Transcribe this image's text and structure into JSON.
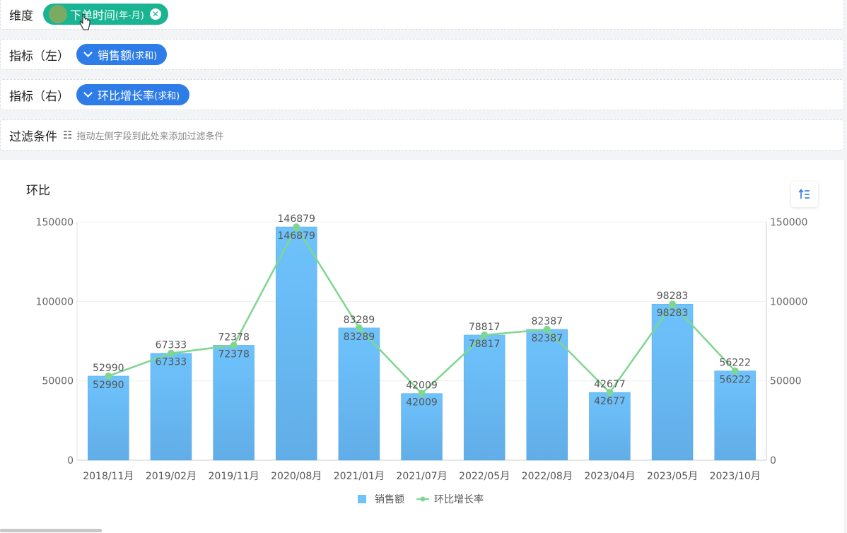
{
  "dimension": {
    "label": "维度",
    "field": "下单时间",
    "suffix": "(年-月)"
  },
  "metric_left": {
    "label": "指标（左）",
    "field": "销售额",
    "suffix": "(求和)"
  },
  "metric_right": {
    "label": "指标（右）",
    "field": "环比增长率",
    "suffix": "(求和)"
  },
  "filter": {
    "label": "过滤条件",
    "hint": "拖动左侧字段到此处来添加过滤条件"
  },
  "colors": {
    "bar_top": "#6ec3fc",
    "bar_bottom": "#61ade8",
    "line": "#7fd690",
    "green_pill": "#19b593",
    "blue_pill": "#2d7ce8"
  },
  "chart_data": {
    "type": "bar",
    "title": "环比",
    "categories": [
      "2018/11月",
      "2019/02月",
      "2019/11月",
      "2020/08月",
      "2021/01月",
      "2021/07月",
      "2022/05月",
      "2022/08月",
      "2023/04月",
      "2023/05月",
      "2023/10月"
    ],
    "series": [
      {
        "name": "销售额",
        "type": "bar",
        "axis": "left",
        "values": [
          52990,
          67333,
          72378,
          146879,
          83289,
          42009,
          78817,
          82387,
          42677,
          98283,
          56222
        ]
      },
      {
        "name": "环比增长率",
        "type": "line",
        "axis": "right",
        "values": [
          52990,
          67333,
          72378,
          146879,
          83289,
          42009,
          78817,
          82387,
          42677,
          98283,
          56222
        ]
      }
    ],
    "ylim": [
      0,
      150000
    ],
    "y2lim": [
      0,
      150000
    ],
    "yticks": [
      "0",
      "50000",
      "100000",
      "150000"
    ],
    "legend": "bottom-center"
  }
}
